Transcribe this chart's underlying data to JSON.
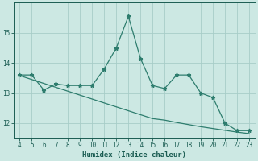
{
  "x": [
    4,
    5,
    6,
    7,
    8,
    9,
    10,
    11,
    12,
    13,
    14,
    15,
    16,
    17,
    18,
    19,
    20,
    21,
    22,
    23
  ],
  "y_curve": [
    13.6,
    13.6,
    13.1,
    13.3,
    13.25,
    13.25,
    13.25,
    13.8,
    14.5,
    15.55,
    14.15,
    13.25,
    13.15,
    13.6,
    13.6,
    13.0,
    12.85,
    12.0,
    11.75,
    11.75
  ],
  "y_trend": [
    13.58,
    13.45,
    13.32,
    13.19,
    13.06,
    12.93,
    12.8,
    12.67,
    12.54,
    12.41,
    12.28,
    12.15,
    12.1,
    12.02,
    11.95,
    11.88,
    11.82,
    11.76,
    11.7,
    11.65
  ],
  "xlim": [
    3.5,
    23.5
  ],
  "ylim": [
    11.5,
    16.0
  ],
  "yticks": [
    12,
    13,
    14,
    15
  ],
  "xticks": [
    4,
    5,
    6,
    7,
    8,
    9,
    10,
    11,
    12,
    13,
    14,
    15,
    16,
    17,
    18,
    19,
    20,
    21,
    22,
    23
  ],
  "xlabel": "Humidex (Indice chaleur)",
  "line_color": "#2e7d6e",
  "bg_color": "#cce8e3",
  "grid_color": "#a8cdc8",
  "text_color": "#1a5c52",
  "font_family": "monospace"
}
